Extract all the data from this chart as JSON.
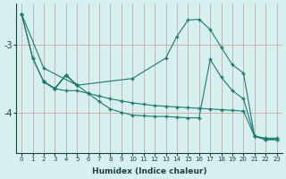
{
  "xlabel": "Humidex (Indice chaleur)",
  "bg_color": "#d6f0f0",
  "line_color": "#1a7a6e",
  "xlim": [
    -0.5,
    23.5
  ],
  "ylim": [
    -4.6,
    -2.4
  ],
  "yticks": [
    -4,
    -3
  ],
  "xticks": [
    0,
    1,
    2,
    3,
    4,
    5,
    6,
    7,
    8,
    9,
    10,
    11,
    12,
    13,
    14,
    15,
    16,
    17,
    18,
    19,
    20,
    21,
    22,
    23
  ],
  "series1_x": [
    0,
    1,
    2,
    3,
    4,
    5,
    6,
    7,
    8,
    9,
    10,
    11,
    12,
    13,
    14,
    15,
    16,
    17,
    18,
    19,
    20,
    21,
    22,
    23
  ],
  "series1_y": [
    -2.55,
    -3.2,
    -3.55,
    -3.65,
    -3.68,
    -3.68,
    -3.72,
    -3.76,
    -3.8,
    -3.83,
    -3.86,
    -3.88,
    -3.9,
    -3.91,
    -3.92,
    -3.93,
    -3.94,
    -3.95,
    -3.96,
    -3.97,
    -3.98,
    -4.35,
    -4.38,
    -4.38
  ],
  "series2_x": [
    0,
    1,
    2,
    3,
    4,
    5,
    6,
    7,
    8,
    9,
    10,
    11,
    12,
    13,
    14,
    15,
    16,
    17,
    18,
    19,
    20,
    21,
    22,
    23
  ],
  "series2_y": [
    -2.55,
    -3.2,
    -3.55,
    -3.65,
    -3.45,
    -3.6,
    -3.72,
    -3.84,
    -3.95,
    -4.0,
    -4.04,
    -4.05,
    -4.06,
    -4.06,
    -4.07,
    -4.08,
    -4.08,
    -3.22,
    -3.48,
    -3.68,
    -3.8,
    -4.35,
    -4.4,
    -4.4
  ],
  "series3_x": [
    0,
    2,
    5,
    10,
    13,
    14,
    15,
    16,
    17,
    18,
    19,
    20,
    21,
    22,
    23
  ],
  "series3_y": [
    -2.55,
    -3.35,
    -3.6,
    -3.5,
    -3.2,
    -2.88,
    -2.64,
    -2.63,
    -2.78,
    -3.04,
    -3.3,
    -3.42,
    -4.35,
    -4.4,
    -4.4
  ],
  "series4_x": [
    2,
    3,
    4,
    5,
    4,
    3,
    2
  ],
  "series4_y": [
    -3.55,
    -3.65,
    -3.45,
    -3.6,
    -3.45,
    -3.65,
    -3.55
  ]
}
